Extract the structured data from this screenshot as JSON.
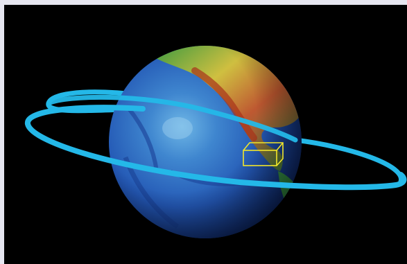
{
  "image": {
    "subject": "earth-globe-with-orbit",
    "colors": {
      "frame_background": "#e6e6f0",
      "space_background": "#000000",
      "orbit_ring": "#24b8e8",
      "highlight_box": "#f2e62a",
      "ocean_deep": "#0b2a7a",
      "ocean_mid": "#2156b8",
      "ocean_shallow": "#4fa3d8",
      "land_low": "#2f9a3a",
      "land_mid": "#d8c43a",
      "land_high": "#b83a1e"
    },
    "icons": [
      "globe-icon",
      "orbit-ring-icon",
      "bounding-box-icon"
    ]
  }
}
